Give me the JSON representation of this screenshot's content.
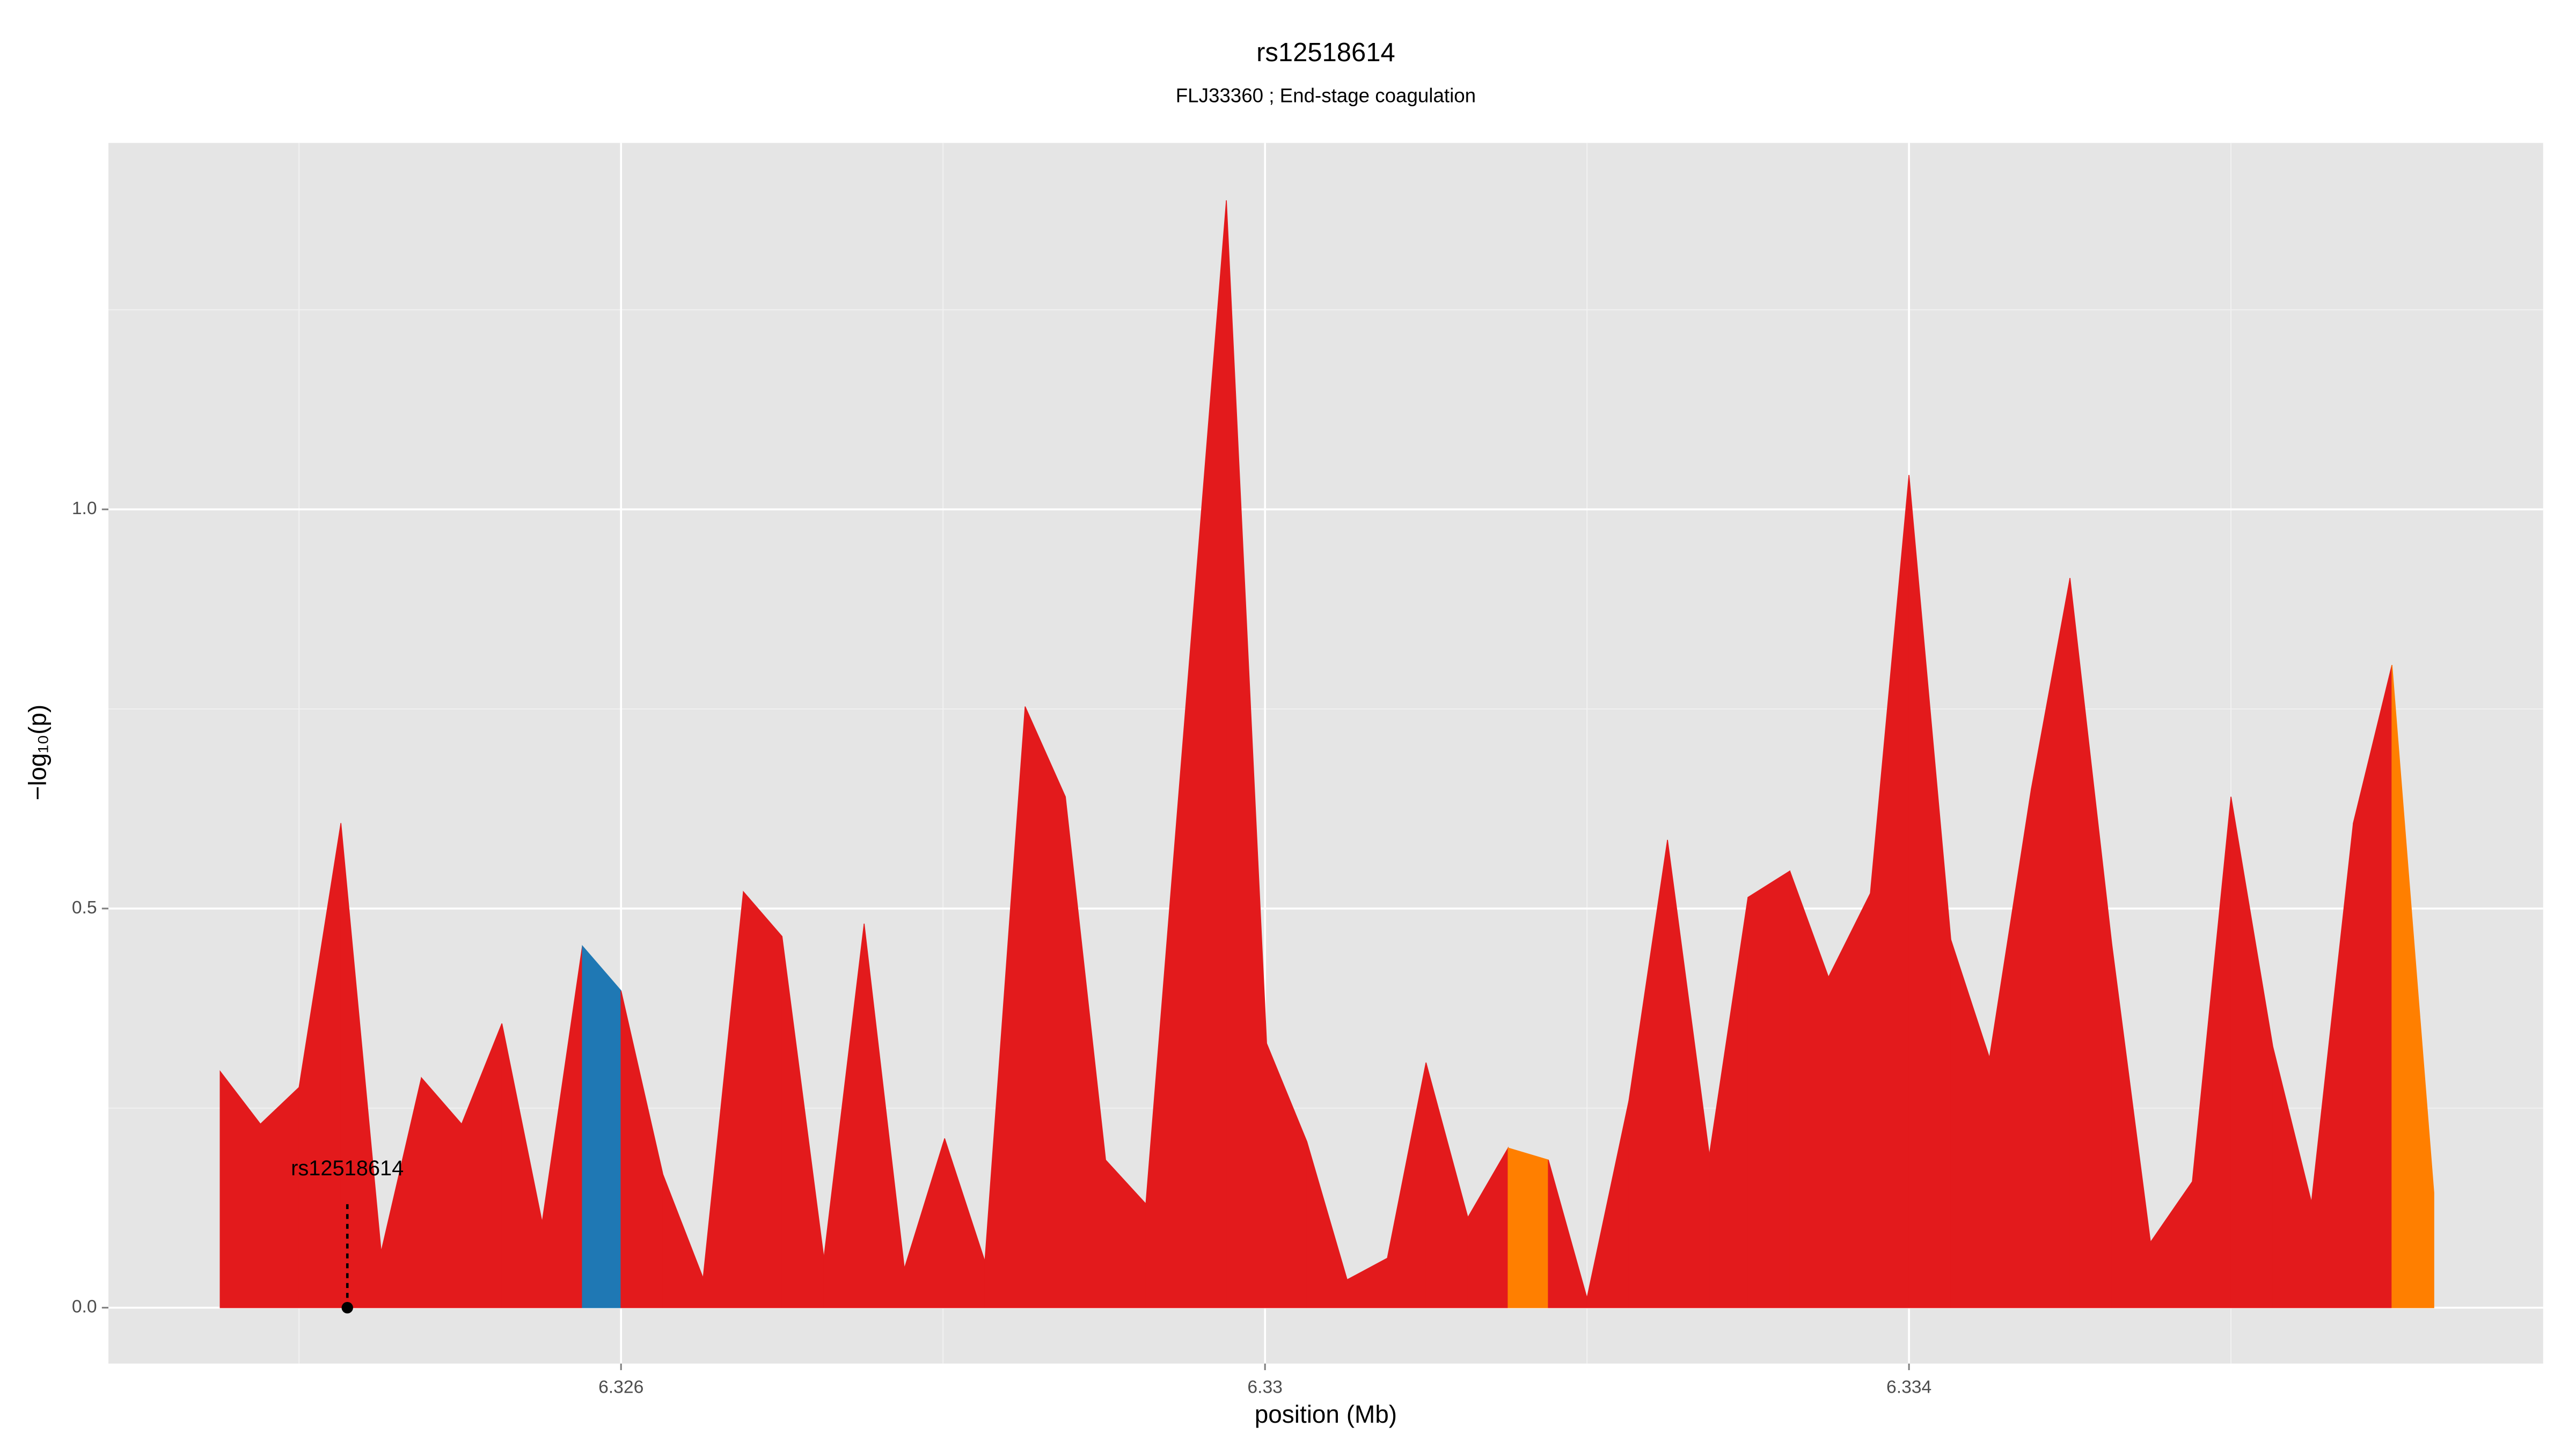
{
  "chart_data": {
    "type": "area",
    "title": "rs12518614",
    "subtitle": "FLJ33360 ; End-stage coagulation",
    "xlabel": "position (Mb)",
    "ylabel": "−log₁₀(p)",
    "x": [
      6.32351,
      6.32376,
      6.324,
      6.32426,
      6.32451,
      6.32476,
      6.32501,
      6.32526,
      6.32551,
      6.32576,
      6.326,
      6.32626,
      6.32651,
      6.32676,
      6.327,
      6.32726,
      6.32751,
      6.32776,
      6.32801,
      6.32826,
      6.32851,
      6.32876,
      6.32901,
      6.32926,
      6.32976,
      6.33001,
      6.33026,
      6.33051,
      6.33076,
      6.331,
      6.33126,
      6.33151,
      6.33176,
      6.332,
      6.33226,
      6.3325,
      6.33276,
      6.333,
      6.33326,
      6.3335,
      6.33376,
      6.334,
      6.33426,
      6.3345,
      6.33476,
      6.335,
      6.33526,
      6.3355,
      6.33576,
      6.336,
      6.33626,
      6.3365,
      6.33676,
      6.337,
      6.33726
    ],
    "values": [
      0.296,
      0.23,
      0.276,
      0.607,
      0.07,
      0.288,
      0.23,
      0.356,
      0.107,
      0.453,
      0.397,
      0.167,
      0.037,
      0.521,
      0.465,
      0.062,
      0.481,
      0.049,
      0.212,
      0.058,
      0.753,
      0.64,
      0.185,
      0.13,
      1.387,
      0.331,
      0.208,
      0.035,
      0.062,
      0.307,
      0.113,
      0.2,
      0.185,
      0.012,
      0.259,
      0.586,
      0.191,
      0.514,
      0.547,
      0.414,
      0.519,
      1.043,
      0.461,
      0.313,
      0.65,
      0.914,
      0.455,
      0.082,
      0.158,
      0.64,
      0.327,
      0.132,
      0.607,
      0.805,
      0.144
    ],
    "segment_colors": [
      "#e31a1c",
      "#e31a1c",
      "#e31a1c",
      "#e31a1c",
      "#e31a1c",
      "#e31a1c",
      "#e31a1c",
      "#e31a1c",
      "#e31a1c",
      "#1f78b4",
      "#e31a1c",
      "#e31a1c",
      "#e31a1c",
      "#e31a1c",
      "#e31a1c",
      "#e31a1c",
      "#e31a1c",
      "#e31a1c",
      "#e31a1c",
      "#e31a1c",
      "#e31a1c",
      "#e31a1c",
      "#e31a1c",
      "#e31a1c",
      "#e31a1c",
      "#e31a1c",
      "#e31a1c",
      "#e31a1c",
      "#e31a1c",
      "#e31a1c",
      "#e31a1c",
      "#ff7f00",
      "#e31a1c",
      "#e31a1c",
      "#e31a1c",
      "#e31a1c",
      "#e31a1c",
      "#e31a1c",
      "#e31a1c",
      "#e31a1c",
      "#e31a1c",
      "#e31a1c",
      "#e31a1c",
      "#e31a1c",
      "#e31a1c",
      "#e31a1c",
      "#e31a1c",
      "#e31a1c",
      "#e31a1c",
      "#e31a1c",
      "#e31a1c",
      "#e31a1c",
      "#e31a1c",
      "#ff7f00"
    ],
    "annotation": {
      "text": "rs12518614",
      "x": 6.3243,
      "y": 0
    },
    "xlim": [
      6.322816,
      6.337939
    ],
    "ylim": [
      -0.07,
      1.459
    ],
    "xticks": [
      6.326,
      6.33,
      6.334
    ],
    "x_minor_ticks": [
      6.324,
      6.328,
      6.332,
      6.336
    ],
    "yticks": [
      {
        "value": 0,
        "label": "0.0"
      },
      0.5,
      {
        "value": 1,
        "label": "1.0"
      }
    ],
    "y_minor_ticks": [
      0.25,
      0.75,
      1.25
    ],
    "grid": true
  }
}
